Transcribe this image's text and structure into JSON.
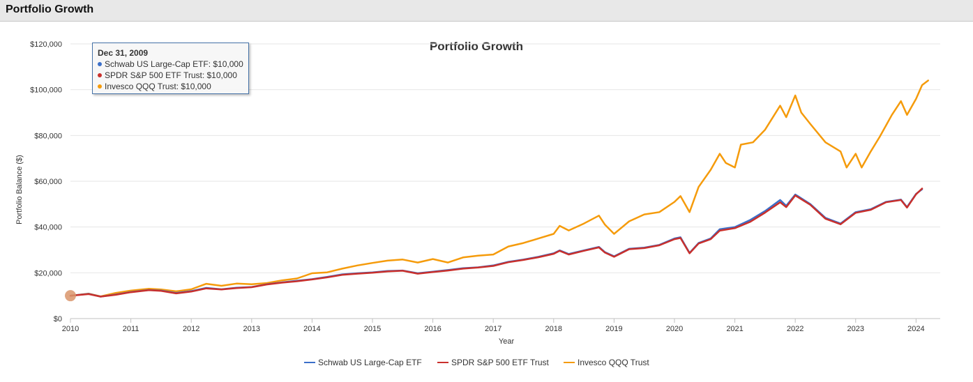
{
  "panel": {
    "title": "Portfolio Growth"
  },
  "tooltip": {
    "date": "Dec 31, 2009",
    "rows": [
      {
        "series": "Schwab US Large-Cap ETF",
        "value": "$10,000",
        "color": "#3b6fc9"
      },
      {
        "series": "SPDR S&P 500 ETF Trust",
        "value": "$10,000",
        "color": "#c9302c"
      },
      {
        "series": "Invesco QQQ Trust",
        "value": "$10,000",
        "color": "#f59b0b"
      }
    ]
  },
  "chart_data": {
    "type": "line",
    "title": "Portfolio Growth",
    "xlabel": "Year",
    "ylabel": "Portfolio Balance ($)",
    "xlim": [
      2010.0,
      2024.2
    ],
    "ylim": [
      0,
      120000
    ],
    "x_ticks": [
      "2010",
      "2011",
      "2012",
      "2013",
      "2014",
      "2015",
      "2016",
      "2017",
      "2018",
      "2019",
      "2020",
      "2021",
      "2022",
      "2023",
      "2024"
    ],
    "y_ticks": [
      "$0",
      "$20,000",
      "$40,000",
      "$60,000",
      "$80,000",
      "$100,000",
      "$120,000"
    ],
    "y_tick_values": [
      0,
      20000,
      40000,
      60000,
      80000,
      100000,
      120000
    ],
    "grid": true,
    "legend": "bottom-center",
    "highlight_point": {
      "x": 2010.0,
      "y": 10000
    },
    "series": [
      {
        "name": "Schwab US Large-Cap ETF",
        "color": "#3b6fc9",
        "points": [
          [
            2010.0,
            10000
          ],
          [
            2010.3,
            10800
          ],
          [
            2010.5,
            9600
          ],
          [
            2010.75,
            10500
          ],
          [
            2011.0,
            11600
          ],
          [
            2011.3,
            12500
          ],
          [
            2011.5,
            12200
          ],
          [
            2011.75,
            11200
          ],
          [
            2012.0,
            12000
          ],
          [
            2012.25,
            13400
          ],
          [
            2012.5,
            12800
          ],
          [
            2012.75,
            13500
          ],
          [
            2013.0,
            13800
          ],
          [
            2013.25,
            15000
          ],
          [
            2013.5,
            15800
          ],
          [
            2013.75,
            16500
          ],
          [
            2014.0,
            17200
          ],
          [
            2014.25,
            18200
          ],
          [
            2014.5,
            19300
          ],
          [
            2014.75,
            19800
          ],
          [
            2015.0,
            20200
          ],
          [
            2015.25,
            20800
          ],
          [
            2015.5,
            21000
          ],
          [
            2015.75,
            19800
          ],
          [
            2016.0,
            20500
          ],
          [
            2016.25,
            21200
          ],
          [
            2016.5,
            22000
          ],
          [
            2016.75,
            22400
          ],
          [
            2017.0,
            23200
          ],
          [
            2017.25,
            24800
          ],
          [
            2017.5,
            25800
          ],
          [
            2017.75,
            27000
          ],
          [
            2018.0,
            28500
          ],
          [
            2018.1,
            29800
          ],
          [
            2018.25,
            28200
          ],
          [
            2018.5,
            29800
          ],
          [
            2018.75,
            31300
          ],
          [
            2018.85,
            29000
          ],
          [
            2019.0,
            27200
          ],
          [
            2019.25,
            30500
          ],
          [
            2019.5,
            31000
          ],
          [
            2019.75,
            32200
          ],
          [
            2020.0,
            35000
          ],
          [
            2020.1,
            35500
          ],
          [
            2020.25,
            28700
          ],
          [
            2020.4,
            33000
          ],
          [
            2020.6,
            35000
          ],
          [
            2020.75,
            39000
          ],
          [
            2021.0,
            40000
          ],
          [
            2021.25,
            43000
          ],
          [
            2021.5,
            47000
          ],
          [
            2021.75,
            51800
          ],
          [
            2021.85,
            49300
          ],
          [
            2022.0,
            54200
          ],
          [
            2022.25,
            50000
          ],
          [
            2022.5,
            44000
          ],
          [
            2022.75,
            41500
          ],
          [
            2023.0,
            46500
          ],
          [
            2023.25,
            47800
          ],
          [
            2023.5,
            51000
          ],
          [
            2023.75,
            52000
          ],
          [
            2023.85,
            48700
          ],
          [
            2024.0,
            54500
          ],
          [
            2024.1,
            56500
          ]
        ]
      },
      {
        "name": "SPDR S&P 500 ETF Trust",
        "color": "#c9302c",
        "points": [
          [
            2010.0,
            10000
          ],
          [
            2010.3,
            10700
          ],
          [
            2010.5,
            9600
          ],
          [
            2010.75,
            10400
          ],
          [
            2011.0,
            11500
          ],
          [
            2011.3,
            12400
          ],
          [
            2011.5,
            12100
          ],
          [
            2011.75,
            11000
          ],
          [
            2012.0,
            11800
          ],
          [
            2012.25,
            13200
          ],
          [
            2012.5,
            12700
          ],
          [
            2012.75,
            13300
          ],
          [
            2013.0,
            13700
          ],
          [
            2013.25,
            14900
          ],
          [
            2013.5,
            15700
          ],
          [
            2013.75,
            16300
          ],
          [
            2014.0,
            17100
          ],
          [
            2014.25,
            18000
          ],
          [
            2014.5,
            19100
          ],
          [
            2014.75,
            19600
          ],
          [
            2015.0,
            20000
          ],
          [
            2015.25,
            20600
          ],
          [
            2015.5,
            20900
          ],
          [
            2015.75,
            19600
          ],
          [
            2016.0,
            20300
          ],
          [
            2016.25,
            21000
          ],
          [
            2016.5,
            21800
          ],
          [
            2016.75,
            22300
          ],
          [
            2017.0,
            23000
          ],
          [
            2017.25,
            24600
          ],
          [
            2017.5,
            25600
          ],
          [
            2017.75,
            26800
          ],
          [
            2018.0,
            28300
          ],
          [
            2018.1,
            29600
          ],
          [
            2018.25,
            28000
          ],
          [
            2018.5,
            29600
          ],
          [
            2018.75,
            31100
          ],
          [
            2018.85,
            28800
          ],
          [
            2019.0,
            27000
          ],
          [
            2019.25,
            30300
          ],
          [
            2019.5,
            30800
          ],
          [
            2019.75,
            32000
          ],
          [
            2020.0,
            34700
          ],
          [
            2020.1,
            35200
          ],
          [
            2020.25,
            28500
          ],
          [
            2020.4,
            32800
          ],
          [
            2020.6,
            34700
          ],
          [
            2020.75,
            38400
          ],
          [
            2021.0,
            39500
          ],
          [
            2021.25,
            42200
          ],
          [
            2021.5,
            46300
          ],
          [
            2021.75,
            50800
          ],
          [
            2021.85,
            48700
          ],
          [
            2022.0,
            53800
          ],
          [
            2022.25,
            49700
          ],
          [
            2022.5,
            43600
          ],
          [
            2022.75,
            41200
          ],
          [
            2023.0,
            46200
          ],
          [
            2023.25,
            47500
          ],
          [
            2023.5,
            50800
          ],
          [
            2023.75,
            51800
          ],
          [
            2023.85,
            48500
          ],
          [
            2024.0,
            54300
          ],
          [
            2024.1,
            56800
          ]
        ]
      },
      {
        "name": "Invesco QQQ Trust",
        "color": "#f59b0b",
        "points": [
          [
            2010.0,
            10000
          ],
          [
            2010.3,
            10900
          ],
          [
            2010.5,
            9700
          ],
          [
            2010.75,
            11200
          ],
          [
            2011.0,
            12200
          ],
          [
            2011.3,
            13000
          ],
          [
            2011.5,
            12700
          ],
          [
            2011.75,
            11900
          ],
          [
            2012.0,
            12800
          ],
          [
            2012.25,
            15200
          ],
          [
            2012.5,
            14300
          ],
          [
            2012.75,
            15300
          ],
          [
            2013.0,
            15000
          ],
          [
            2013.25,
            15500
          ],
          [
            2013.5,
            16700
          ],
          [
            2013.75,
            17500
          ],
          [
            2014.0,
            19800
          ],
          [
            2014.25,
            20200
          ],
          [
            2014.5,
            21800
          ],
          [
            2014.75,
            23200
          ],
          [
            2015.0,
            24300
          ],
          [
            2015.25,
            25300
          ],
          [
            2015.5,
            25800
          ],
          [
            2015.75,
            24500
          ],
          [
            2016.0,
            26000
          ],
          [
            2016.25,
            24500
          ],
          [
            2016.5,
            26700
          ],
          [
            2016.75,
            27500
          ],
          [
            2017.0,
            28000
          ],
          [
            2017.25,
            31500
          ],
          [
            2017.5,
            33000
          ],
          [
            2017.75,
            35000
          ],
          [
            2018.0,
            37000
          ],
          [
            2018.1,
            40500
          ],
          [
            2018.25,
            38500
          ],
          [
            2018.5,
            41500
          ],
          [
            2018.75,
            45000
          ],
          [
            2018.85,
            41000
          ],
          [
            2019.0,
            37000
          ],
          [
            2019.25,
            42500
          ],
          [
            2019.5,
            45500
          ],
          [
            2019.75,
            46500
          ],
          [
            2020.0,
            51000
          ],
          [
            2020.1,
            53500
          ],
          [
            2020.25,
            46500
          ],
          [
            2020.4,
            57500
          ],
          [
            2020.6,
            65000
          ],
          [
            2020.75,
            72000
          ],
          [
            2020.85,
            68000
          ],
          [
            2021.0,
            66000
          ],
          [
            2021.1,
            76000
          ],
          [
            2021.3,
            77000
          ],
          [
            2021.5,
            82500
          ],
          [
            2021.75,
            93000
          ],
          [
            2021.85,
            88000
          ],
          [
            2022.0,
            97500
          ],
          [
            2022.1,
            90000
          ],
          [
            2022.25,
            85000
          ],
          [
            2022.5,
            77000
          ],
          [
            2022.75,
            73000
          ],
          [
            2022.85,
            66000
          ],
          [
            2023.0,
            72000
          ],
          [
            2023.1,
            66000
          ],
          [
            2023.25,
            73000
          ],
          [
            2023.4,
            79500
          ],
          [
            2023.6,
            89000
          ],
          [
            2023.75,
            95000
          ],
          [
            2023.85,
            89000
          ],
          [
            2024.0,
            96000
          ],
          [
            2024.1,
            102000
          ],
          [
            2024.2,
            104000
          ]
        ]
      }
    ]
  }
}
